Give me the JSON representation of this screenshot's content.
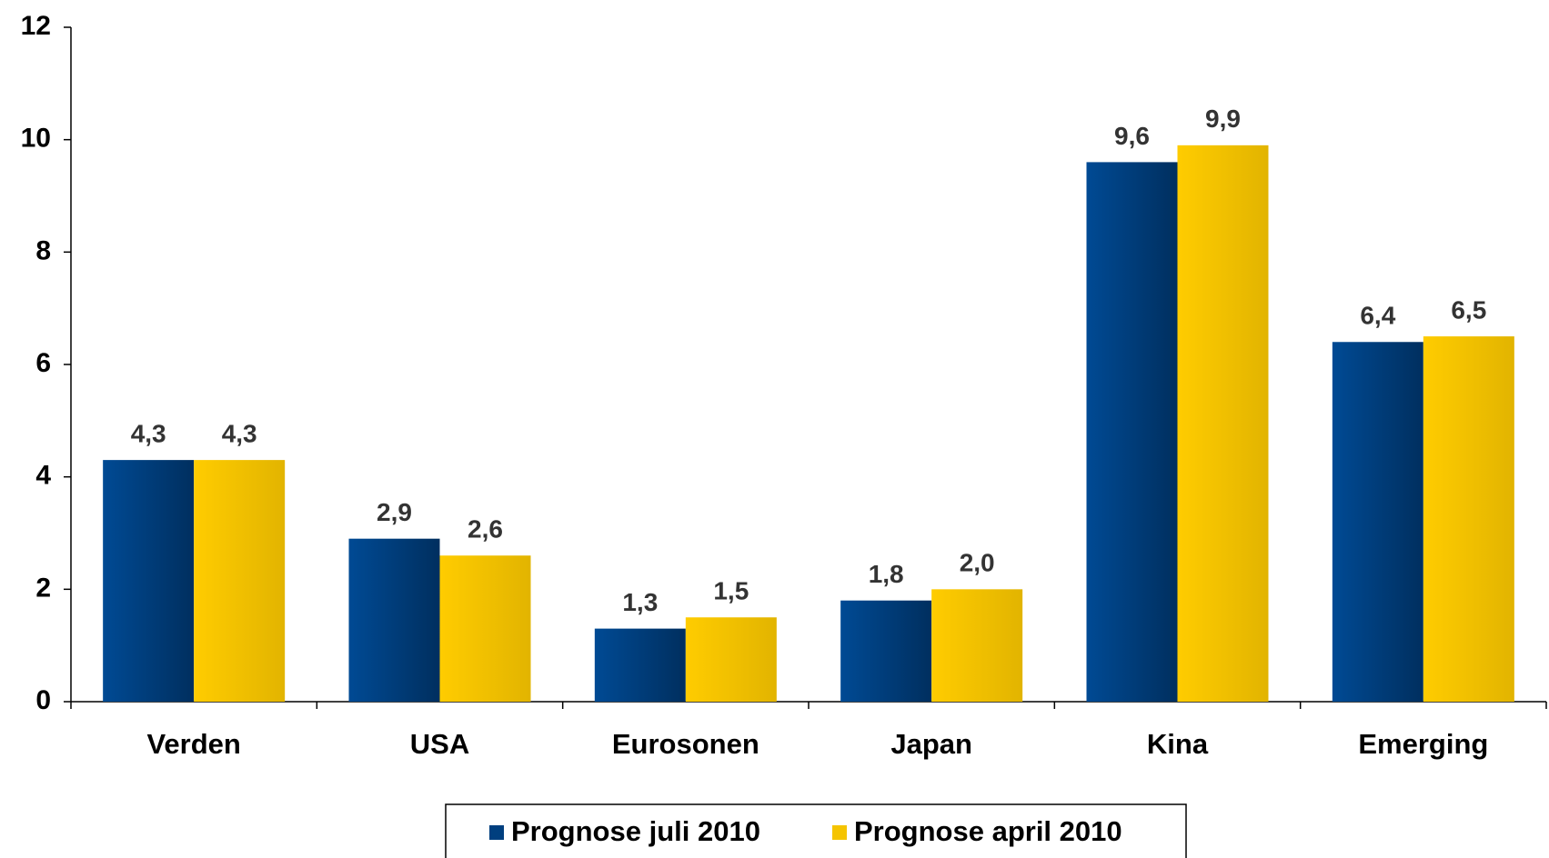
{
  "chart_data": {
    "type": "bar",
    "categories": [
      "Verden",
      "USA",
      "Eurosonen",
      "Japan",
      "Kina",
      "Emerging"
    ],
    "series": [
      {
        "name": "Prognose juli 2010",
        "color": "#003f7f",
        "values": [
          4.3,
          2.9,
          1.3,
          1.8,
          9.6,
          6.4
        ],
        "value_labels": [
          "4,3",
          "2,9",
          "1,3",
          "1,8",
          "9,6",
          "6,4"
        ]
      },
      {
        "name": "Prognose april 2010",
        "color": "#f5c400",
        "values": [
          4.3,
          2.6,
          1.5,
          2.0,
          9.9,
          6.5
        ],
        "value_labels": [
          "4,3",
          "2,6",
          "1,5",
          "2,0",
          "9,9",
          "6,5"
        ]
      }
    ],
    "ylim": [
      0,
      12
    ],
    "yticks": [
      0,
      2,
      4,
      6,
      8,
      10,
      12
    ],
    "grid": false,
    "legend": "bottom"
  }
}
